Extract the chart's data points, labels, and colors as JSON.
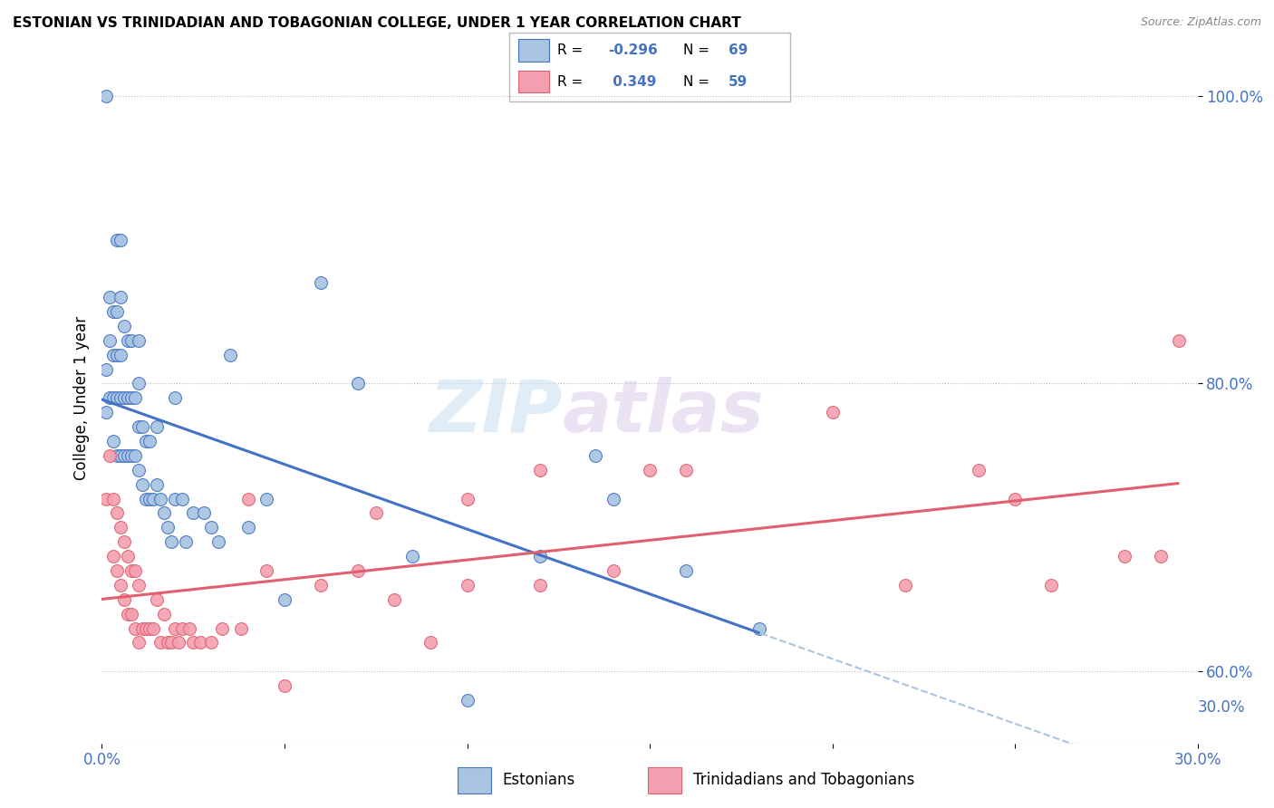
{
  "title": "ESTONIAN VS TRINIDADIAN AND TOBAGONIAN COLLEGE, UNDER 1 YEAR CORRELATION CHART",
  "source": "Source: ZipAtlas.com",
  "ylabel": "College, Under 1 year",
  "legend_label1": "Estonians",
  "legend_label2": "Trinidadians and Tobagonians",
  "R1": "-0.296",
  "N1": "69",
  "R2": "0.349",
  "N2": "59",
  "x_min": 0.0,
  "x_max": 0.3,
  "y_min": 0.55,
  "y_max": 1.03,
  "x_ticks": [
    0.0,
    0.05,
    0.1,
    0.15,
    0.2,
    0.25,
    0.3
  ],
  "y_ticks": [
    0.6,
    0.8,
    1.0
  ],
  "y_tick_labels": [
    "60.0%",
    "80.0%",
    "100.0%"
  ],
  "y_bottom_label": "30.0%",
  "color_estonian": "#a8c4e0",
  "color_trinidadian": "#f4a0b0",
  "color_line_estonian": "#4472c4",
  "color_line_trinidadian": "#e06070",
  "color_line_dashed": "#a8c4e0",
  "watermark_zip": "ZIP",
  "watermark_atlas": "atlas",
  "estonian_x": [
    0.001,
    0.001,
    0.002,
    0.002,
    0.002,
    0.003,
    0.003,
    0.003,
    0.003,
    0.004,
    0.004,
    0.004,
    0.004,
    0.004,
    0.005,
    0.005,
    0.005,
    0.005,
    0.005,
    0.006,
    0.006,
    0.006,
    0.007,
    0.007,
    0.007,
    0.008,
    0.008,
    0.008,
    0.009,
    0.009,
    0.01,
    0.01,
    0.01,
    0.01,
    0.011,
    0.011,
    0.012,
    0.012,
    0.013,
    0.013,
    0.014,
    0.015,
    0.016,
    0.017,
    0.018,
    0.019,
    0.02,
    0.02,
    0.022,
    0.023,
    0.025,
    0.028,
    0.03,
    0.032,
    0.035,
    0.04,
    0.045,
    0.05,
    0.06,
    0.07,
    0.085,
    0.1,
    0.12,
    0.14,
    0.16,
    0.18,
    0.135,
    0.015,
    0.001
  ],
  "estonian_y": [
    0.78,
    0.81,
    0.79,
    0.83,
    0.86,
    0.76,
    0.79,
    0.82,
    0.85,
    0.75,
    0.79,
    0.82,
    0.85,
    0.9,
    0.75,
    0.79,
    0.82,
    0.86,
    0.9,
    0.75,
    0.79,
    0.84,
    0.75,
    0.79,
    0.83,
    0.75,
    0.79,
    0.83,
    0.75,
    0.79,
    0.74,
    0.77,
    0.8,
    0.83,
    0.73,
    0.77,
    0.72,
    0.76,
    0.72,
    0.76,
    0.72,
    0.73,
    0.72,
    0.71,
    0.7,
    0.69,
    0.79,
    0.72,
    0.72,
    0.69,
    0.71,
    0.71,
    0.7,
    0.69,
    0.82,
    0.7,
    0.72,
    0.65,
    0.87,
    0.8,
    0.68,
    0.58,
    0.68,
    0.72,
    0.67,
    0.63,
    0.75,
    0.77,
    1.0
  ],
  "trinidadian_x": [
    0.001,
    0.002,
    0.003,
    0.003,
    0.004,
    0.004,
    0.005,
    0.005,
    0.006,
    0.006,
    0.007,
    0.007,
    0.008,
    0.008,
    0.009,
    0.009,
    0.01,
    0.01,
    0.011,
    0.012,
    0.013,
    0.014,
    0.015,
    0.016,
    0.017,
    0.018,
    0.019,
    0.02,
    0.021,
    0.022,
    0.024,
    0.025,
    0.027,
    0.03,
    0.033,
    0.038,
    0.04,
    0.045,
    0.05,
    0.06,
    0.07,
    0.08,
    0.09,
    0.1,
    0.12,
    0.14,
    0.16,
    0.2,
    0.22,
    0.24,
    0.26,
    0.28,
    0.1,
    0.12,
    0.075,
    0.15,
    0.29,
    0.25,
    0.295
  ],
  "trinidadian_y": [
    0.72,
    0.75,
    0.68,
    0.72,
    0.67,
    0.71,
    0.66,
    0.7,
    0.65,
    0.69,
    0.64,
    0.68,
    0.64,
    0.67,
    0.63,
    0.67,
    0.62,
    0.66,
    0.63,
    0.63,
    0.63,
    0.63,
    0.65,
    0.62,
    0.64,
    0.62,
    0.62,
    0.63,
    0.62,
    0.63,
    0.63,
    0.62,
    0.62,
    0.62,
    0.63,
    0.63,
    0.72,
    0.67,
    0.59,
    0.66,
    0.67,
    0.65,
    0.62,
    0.66,
    0.66,
    0.67,
    0.74,
    0.78,
    0.66,
    0.74,
    0.66,
    0.68,
    0.72,
    0.74,
    0.71,
    0.74,
    0.68,
    0.72,
    0.83
  ]
}
